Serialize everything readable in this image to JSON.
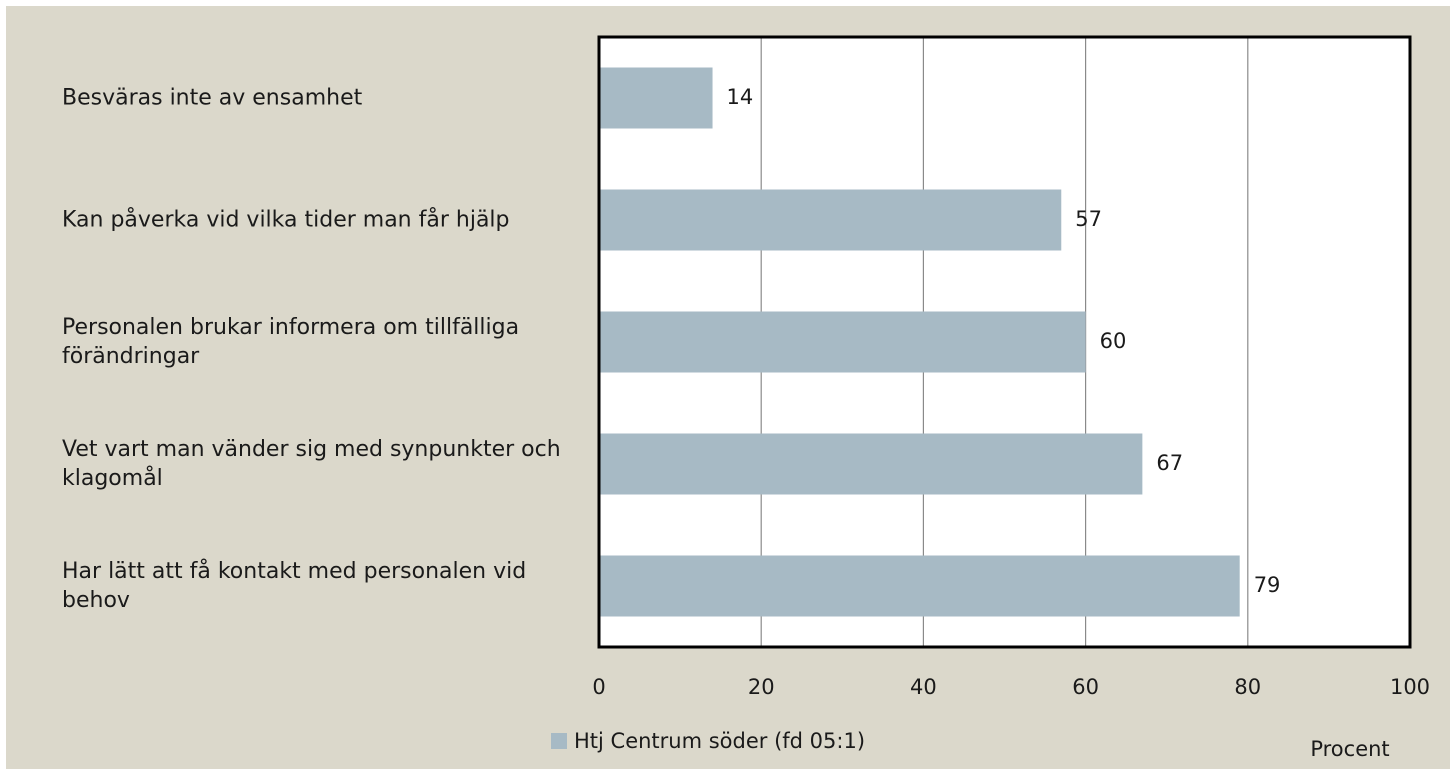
{
  "chart_data": {
    "type": "bar",
    "orientation": "horizontal",
    "categories": [
      "Besväras inte av ensamhet",
      "Kan påverka vid vilka tider man får hjälp",
      "Personalen brukar informera om tillfälliga förändringar",
      "Vet vart man vänder sig med synpunkter och klagomål",
      "Har lätt att få kontakt med personalen vid behov"
    ],
    "series": [
      {
        "name": "Htj Centrum söder (fd 05:1)",
        "color": "#a7bac5",
        "values": [
          14,
          57,
          60,
          67,
          79
        ]
      }
    ],
    "xlim": [
      0,
      100
    ],
    "xticks": [
      0,
      20,
      40,
      60,
      80,
      100
    ],
    "xlabel": "Procent",
    "grid": true,
    "legend": "bottom"
  }
}
